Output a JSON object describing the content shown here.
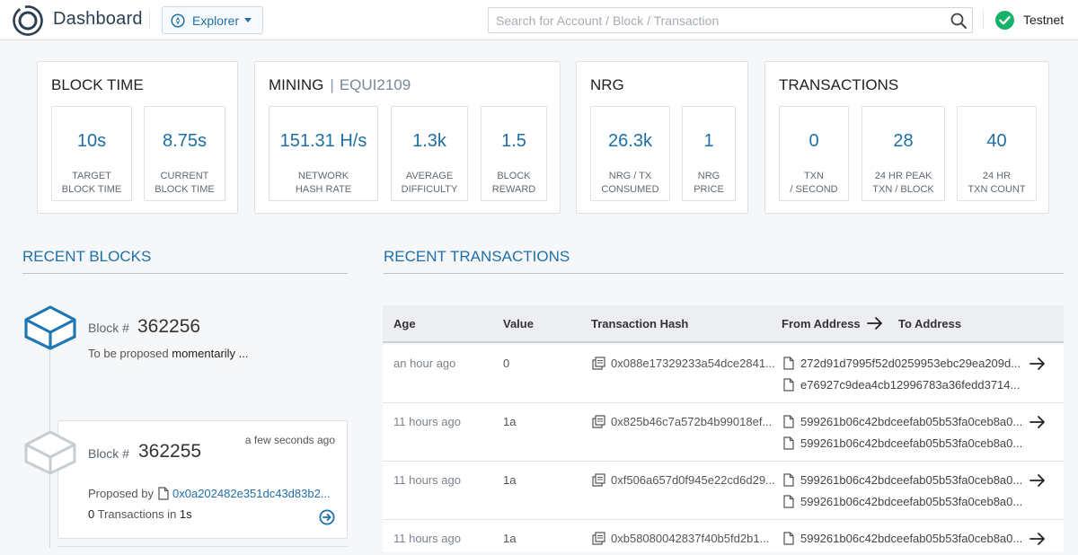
{
  "header": {
    "title": "Dashboard",
    "explorer_label": "Explorer",
    "search_placeholder": "Search for Account / Block / Transaction",
    "network": "Testnet",
    "status_color": "#17b26a",
    "accent_color": "#1f6fa8"
  },
  "cards": {
    "block_time": {
      "title": "BLOCK TIME",
      "stats": [
        {
          "value": "10s",
          "label": "TARGET\nBLOCK TIME"
        },
        {
          "value": "8.75s",
          "label": "CURRENT\nBLOCK TIME"
        }
      ]
    },
    "mining": {
      "title": "MINING",
      "subtitle": "EQUI2109",
      "stats": [
        {
          "value": "151.31 H/s",
          "label": "NETWORK\nHASH RATE"
        },
        {
          "value": "1.3k",
          "label": "AVERAGE\nDIFFICULTY"
        },
        {
          "value": "1.5",
          "label": "BLOCK\nREWARD"
        }
      ]
    },
    "nrg": {
      "title": "NRG",
      "stats": [
        {
          "value": "26.3k",
          "label": "NRG / TX\nCONSUMED"
        },
        {
          "value": "1",
          "label": "NRG\nPRICE"
        }
      ]
    },
    "transactions": {
      "title": "TRANSACTIONS",
      "stats": [
        {
          "value": "0",
          "label": "TXN\n/ SECOND"
        },
        {
          "value": "28",
          "label": "24 HR PEAK\nTXN / BLOCK"
        },
        {
          "value": "40",
          "label": "24 HR\nTXN COUNT"
        }
      ]
    }
  },
  "recent_blocks": {
    "title": "RECENT BLOCKS",
    "pending": {
      "label": "Block #",
      "number": "362256",
      "status_prefix": "To be proposed",
      "status_suffix": "momentarily ..."
    },
    "latest": {
      "label": "Block #",
      "number": "362255",
      "age": "a few seconds ago",
      "proposed_by_label": "Proposed by",
      "proposer": "0x0a202482e351dc43d83b2...",
      "tx_count": "0",
      "tx_label": "Transactions in",
      "duration": "1s"
    }
  },
  "recent_transactions": {
    "title": "RECENT TRANSACTIONS",
    "columns": {
      "age": "Age",
      "value": "Value",
      "hash": "Transaction Hash",
      "from": "From Address",
      "to": "To Address"
    },
    "rows": [
      {
        "age": "an hour ago",
        "value": "0",
        "hash": "0x088e17329233a54dce2841...",
        "from": "272d91d7995f52d0259953ebc29ea209d...",
        "to": "e76927c9dea4cb12996783a36fedd3714..."
      },
      {
        "age": "11 hours ago",
        "value": "1a",
        "hash": "0x825b46c7a572b4b99018ef...",
        "from": "599261b06c42bdceefab05b53fa0ceb8a0...",
        "to": "599261b06c42bdceefab05b53fa0ceb8a0..."
      },
      {
        "age": "11 hours ago",
        "value": "1a",
        "hash": "0xf506a657d0f945e22cd6d29...",
        "from": "599261b06c42bdceefab05b53fa0ceb8a0...",
        "to": "599261b06c42bdceefab05b53fa0ceb8a0..."
      },
      {
        "age": "11 hours ago",
        "value": "1a",
        "hash": "0xb58080042837f40b5fd2b1...",
        "from": "599261b06c42bdceefab05b53fa0ceb8a0...",
        "to": ""
      }
    ]
  }
}
